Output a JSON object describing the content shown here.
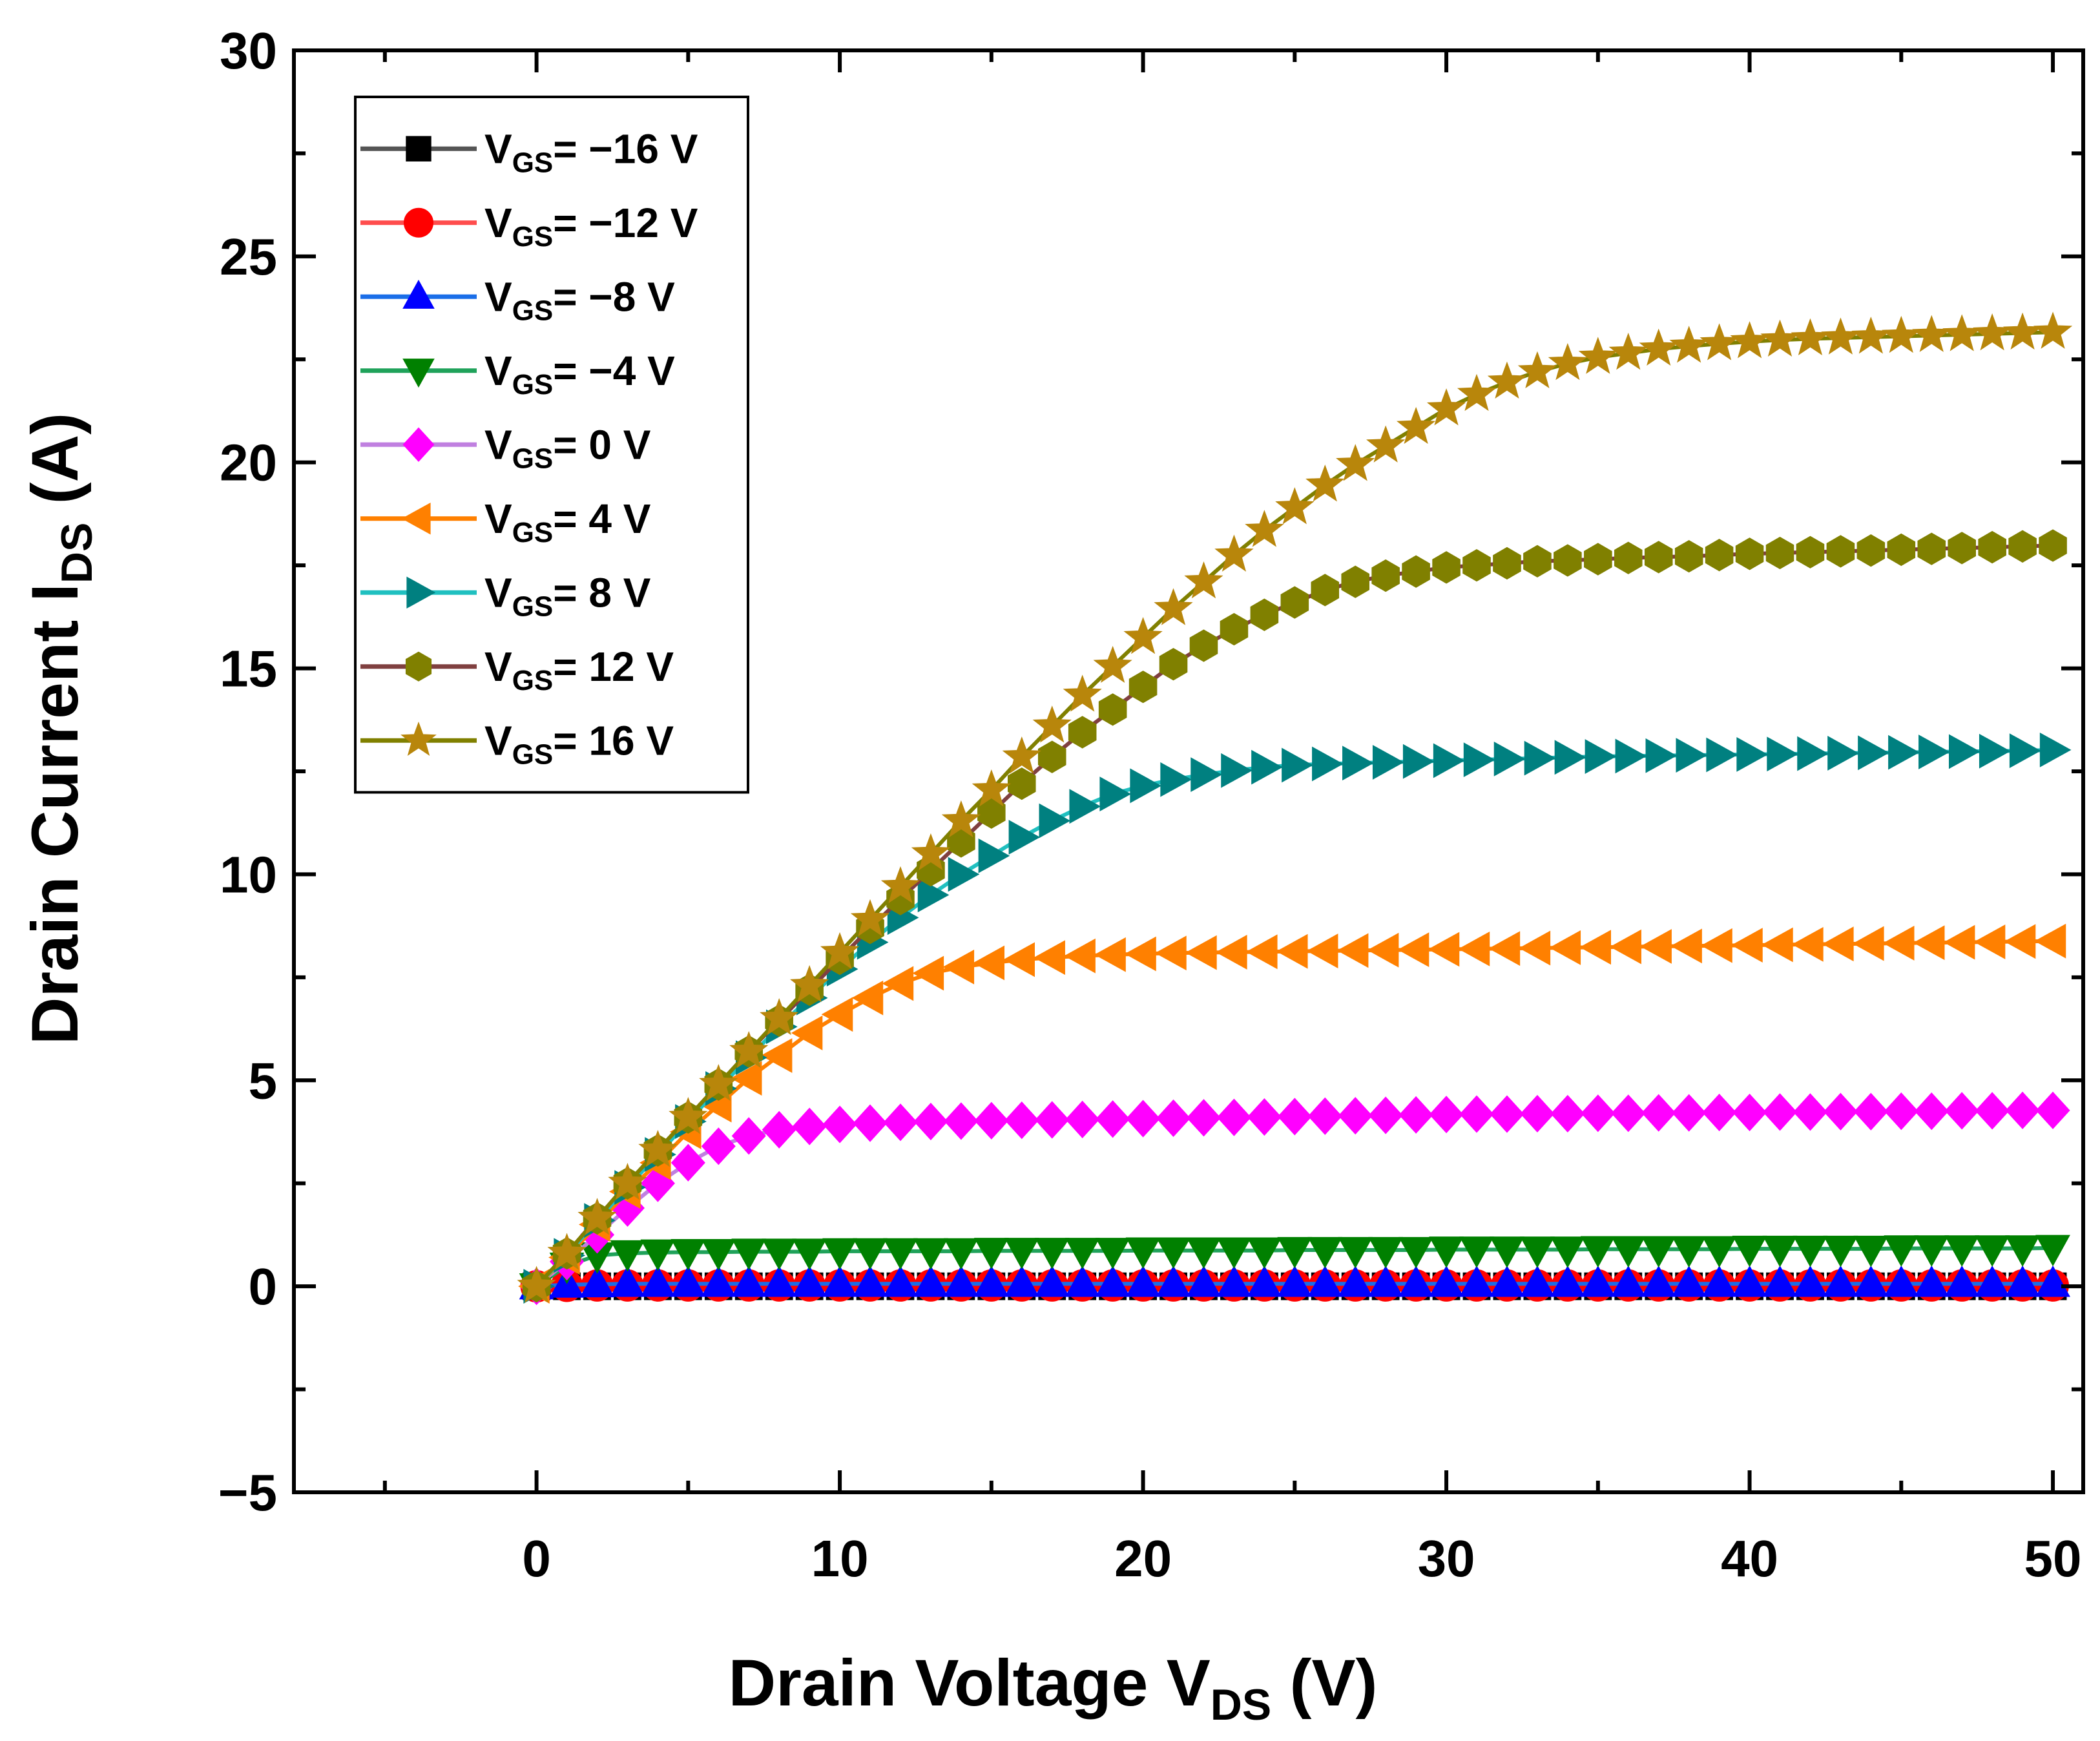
{
  "chart_data": {
    "type": "line",
    "xlabel": {
      "main": "Drain Voltage  V",
      "sub": "DS",
      "tail": "  (V)"
    },
    "ylabel": {
      "main": "Drain Current  I",
      "sub": "DS",
      "tail": " (A)"
    },
    "xlim": [
      -8,
      51
    ],
    "ylim": [
      -5,
      30
    ],
    "x_ticks": [
      0,
      10,
      20,
      30,
      40,
      50
    ],
    "x_tick_labels": [
      "0",
      "10",
      "20",
      "30",
      "40",
      "50"
    ],
    "y_ticks": [
      -5,
      0,
      5,
      10,
      15,
      20,
      25,
      30
    ],
    "y_tick_labels": [
      "−5",
      "0",
      "5",
      "10",
      "15",
      "20",
      "25",
      "30"
    ],
    "x_minor_step": 5,
    "y_minor_step": 2.5,
    "grid": false,
    "legend_position": "top-left",
    "x": [
      0,
      1,
      2,
      3,
      4,
      5,
      6,
      7,
      8,
      9,
      10,
      11,
      12,
      13,
      14,
      15,
      16,
      17,
      18,
      19,
      20,
      21,
      22,
      23,
      24,
      25,
      26,
      27,
      28,
      29,
      30,
      31,
      32,
      33,
      34,
      35,
      36,
      37,
      38,
      39,
      40,
      41,
      42,
      43,
      44,
      45,
      46,
      47,
      48,
      49,
      50
    ],
    "series": [
      {
        "legend_main": "V",
        "legend_sub": "GS",
        "legend_tail": "= −16 V",
        "color": "#000000",
        "line_color": "#555555",
        "marker": "square",
        "values": [
          0,
          0,
          0,
          0,
          0,
          0,
          0,
          0,
          0,
          0,
          0,
          0,
          0,
          0,
          0,
          0,
          0,
          0,
          0,
          0,
          0,
          0,
          0,
          0,
          0,
          0,
          0,
          0,
          0,
          0,
          0,
          0,
          0,
          0,
          0,
          0,
          0,
          0,
          0,
          0,
          0,
          0,
          0,
          0,
          0,
          0,
          0,
          0,
          0,
          0,
          0
        ]
      },
      {
        "legend_main": "V",
        "legend_sub": "GS",
        "legend_tail": "= −12 V",
        "color": "#ff0000",
        "line_color": "#ff4d4d",
        "marker": "circle",
        "values": [
          0,
          0.01,
          0.02,
          0.02,
          0.02,
          0.02,
          0.02,
          0.02,
          0.02,
          0.02,
          0.02,
          0.02,
          0.02,
          0.02,
          0.02,
          0.02,
          0.02,
          0.02,
          0.02,
          0.02,
          0.02,
          0.02,
          0.02,
          0.02,
          0.02,
          0.02,
          0.02,
          0.02,
          0.02,
          0.02,
          0.02,
          0.02,
          0.02,
          0.02,
          0.02,
          0.02,
          0.02,
          0.02,
          0.02,
          0.02,
          0.02,
          0.02,
          0.02,
          0.02,
          0.02,
          0.02,
          0.02,
          0.02,
          0.02,
          0.02,
          0.02
        ]
      },
      {
        "legend_main": "V",
        "legend_sub": "GS",
        "legend_tail": "= −8 V",
        "color": "#0000ff",
        "line_color": "#1a6ee8",
        "marker": "triangle-up",
        "values": [
          0,
          0.04,
          0.05,
          0.06,
          0.06,
          0.06,
          0.06,
          0.06,
          0.06,
          0.06,
          0.06,
          0.06,
          0.06,
          0.06,
          0.06,
          0.06,
          0.06,
          0.06,
          0.06,
          0.06,
          0.06,
          0.06,
          0.06,
          0.06,
          0.06,
          0.06,
          0.06,
          0.06,
          0.06,
          0.06,
          0.06,
          0.06,
          0.06,
          0.06,
          0.06,
          0.06,
          0.06,
          0.06,
          0.06,
          0.06,
          0.06,
          0.06,
          0.06,
          0.06,
          0.06,
          0.06,
          0.06,
          0.06,
          0.06,
          0.06,
          0.06
        ]
      },
      {
        "legend_main": "V",
        "legend_sub": "GS",
        "legend_tail": "= −4 V",
        "color": "#008000",
        "line_color": "#1fa25a",
        "marker": "triangle-down",
        "values": [
          0,
          0.5,
          0.75,
          0.8,
          0.82,
          0.83,
          0.83,
          0.84,
          0.84,
          0.84,
          0.85,
          0.85,
          0.85,
          0.85,
          0.85,
          0.86,
          0.86,
          0.86,
          0.86,
          0.86,
          0.87,
          0.87,
          0.87,
          0.87,
          0.87,
          0.88,
          0.88,
          0.88,
          0.88,
          0.88,
          0.89,
          0.89,
          0.89,
          0.89,
          0.89,
          0.9,
          0.9,
          0.9,
          0.9,
          0.9,
          0.91,
          0.91,
          0.91,
          0.91,
          0.91,
          0.92,
          0.92,
          0.92,
          0.92,
          0.92,
          0.93
        ]
      },
      {
        "legend_main": "V",
        "legend_sub": "GS",
        "legend_tail": "= 0 V",
        "color": "#ff00ff",
        "line_color": "#c080e0",
        "marker": "diamond",
        "values": [
          0,
          0.6,
          1.25,
          1.9,
          2.5,
          3.0,
          3.4,
          3.65,
          3.8,
          3.88,
          3.93,
          3.96,
          3.98,
          4.0,
          4.01,
          4.02,
          4.03,
          4.04,
          4.05,
          4.06,
          4.07,
          4.08,
          4.09,
          4.1,
          4.11,
          4.12,
          4.13,
          4.14,
          4.15,
          4.16,
          4.17,
          4.18,
          4.18,
          4.19,
          4.19,
          4.2,
          4.2,
          4.21,
          4.21,
          4.22,
          4.22,
          4.23,
          4.23,
          4.24,
          4.24,
          4.25,
          4.25,
          4.26,
          4.26,
          4.27,
          4.27
        ]
      },
      {
        "legend_main": "V",
        "legend_sub": "GS",
        "legend_tail": "= 4 V",
        "color": "#ff8000",
        "line_color": "#ff8000",
        "marker": "triangle-left",
        "values": [
          0,
          0.7,
          1.5,
          2.3,
          3.0,
          3.75,
          4.4,
          5.05,
          5.6,
          6.15,
          6.6,
          7.0,
          7.35,
          7.6,
          7.75,
          7.85,
          7.93,
          7.98,
          8.02,
          8.05,
          8.07,
          8.09,
          8.1,
          8.11,
          8.12,
          8.13,
          8.14,
          8.15,
          8.16,
          8.17,
          8.18,
          8.19,
          8.2,
          8.21,
          8.22,
          8.23,
          8.24,
          8.25,
          8.26,
          8.27,
          8.28,
          8.29,
          8.3,
          8.31,
          8.32,
          8.33,
          8.34,
          8.35,
          8.36,
          8.37,
          8.38
        ]
      },
      {
        "legend_main": "V",
        "legend_sub": "GS",
        "legend_tail": "= 8 V",
        "color": "#008080",
        "line_color": "#20c0c0",
        "marker": "triangle-right",
        "values": [
          0,
          0.75,
          1.6,
          2.4,
          3.2,
          4.0,
          4.8,
          5.55,
          6.3,
          7.0,
          7.7,
          8.35,
          8.95,
          9.5,
          10.0,
          10.45,
          10.9,
          11.3,
          11.65,
          11.95,
          12.15,
          12.3,
          12.42,
          12.52,
          12.6,
          12.65,
          12.68,
          12.7,
          12.72,
          12.74,
          12.76,
          12.78,
          12.8,
          12.82,
          12.84,
          12.86,
          12.87,
          12.88,
          12.89,
          12.9,
          12.91,
          12.92,
          12.93,
          12.94,
          12.95,
          12.96,
          12.97,
          12.98,
          12.99,
          13.0,
          13.02
        ]
      },
      {
        "legend_main": "V",
        "legend_sub": "GS",
        "legend_tail": "= 12 V",
        "color": "#808000",
        "line_color": "#804040",
        "marker": "hexagon",
        "values": [
          0,
          0.8,
          1.65,
          2.5,
          3.3,
          4.1,
          4.9,
          5.7,
          6.45,
          7.2,
          7.95,
          8.7,
          9.4,
          10.1,
          10.8,
          11.5,
          12.2,
          12.85,
          13.45,
          14.0,
          14.55,
          15.1,
          15.55,
          15.95,
          16.3,
          16.6,
          16.9,
          17.1,
          17.25,
          17.35,
          17.45,
          17.5,
          17.55,
          17.6,
          17.62,
          17.65,
          17.68,
          17.7,
          17.72,
          17.75,
          17.78,
          17.8,
          17.82,
          17.84,
          17.86,
          17.88,
          17.9,
          17.92,
          17.94,
          17.96,
          17.98
        ]
      },
      {
        "legend_main": "V",
        "legend_sub": "GS",
        "legend_tail": "= 16 V",
        "color": "#b8860b",
        "line_color": "#808000",
        "marker": "star",
        "values": [
          0,
          0.8,
          1.65,
          2.5,
          3.3,
          4.1,
          4.9,
          5.7,
          6.5,
          7.3,
          8.1,
          8.9,
          9.7,
          10.5,
          11.3,
          12.05,
          12.85,
          13.6,
          14.35,
          15.05,
          15.75,
          16.45,
          17.1,
          17.75,
          18.35,
          18.9,
          19.45,
          19.95,
          20.4,
          20.85,
          21.3,
          21.65,
          21.95,
          22.2,
          22.4,
          22.55,
          22.65,
          22.75,
          22.82,
          22.88,
          22.93,
          22.97,
          23.0,
          23.02,
          23.04,
          23.06,
          23.08,
          23.1,
          23.12,
          23.14,
          23.16
        ]
      }
    ]
  }
}
